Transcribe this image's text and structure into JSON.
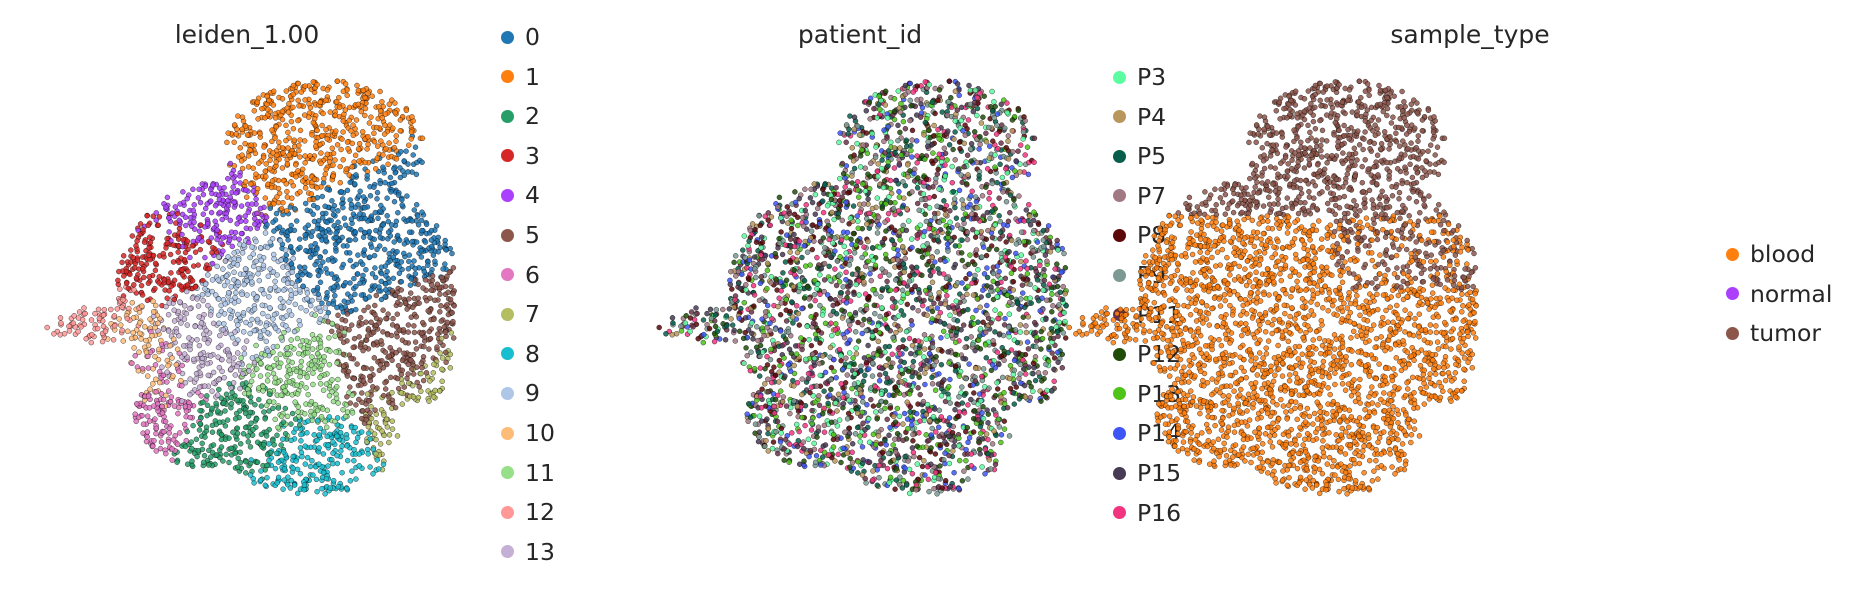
{
  "chart_data": [
    {
      "type": "scatter",
      "title": "leiden_1.00",
      "legend_position": "right",
      "grid": false,
      "axes_visible": false,
      "point_outline": "#000000",
      "categories": [
        {
          "name": "0",
          "color": "#1f77b4"
        },
        {
          "name": "1",
          "color": "#ff7f0e"
        },
        {
          "name": "2",
          "color": "#279e68"
        },
        {
          "name": "3",
          "color": "#d62728"
        },
        {
          "name": "4",
          "color": "#aa40fc"
        },
        {
          "name": "5",
          "color": "#8c564b"
        },
        {
          "name": "6",
          "color": "#e377c2"
        },
        {
          "name": "7",
          "color": "#b5bd61"
        },
        {
          "name": "8",
          "color": "#17becf"
        },
        {
          "name": "9",
          "color": "#aec7e8"
        },
        {
          "name": "10",
          "color": "#ffbb78"
        },
        {
          "name": "11",
          "color": "#98df8a"
        },
        {
          "name": "12",
          "color": "#ff9896"
        },
        {
          "name": "13",
          "color": "#c5b0d5"
        }
      ]
    },
    {
      "type": "scatter",
      "title": "patient_id",
      "legend_position": "right",
      "grid": false,
      "axes_visible": false,
      "point_outline": "#000000",
      "categories": [
        {
          "name": "P3",
          "color": "#5cfca1"
        },
        {
          "name": "P4",
          "color": "#b9965c"
        },
        {
          "name": "P5",
          "color": "#075e4a"
        },
        {
          "name": "P7",
          "color": "#a27883"
        },
        {
          "name": "P8",
          "color": "#5a0808"
        },
        {
          "name": "P9",
          "color": "#7a9a93"
        },
        {
          "name": "P11",
          "color": "#6b3448"
        },
        {
          "name": "P12",
          "color": "#1f4c08"
        },
        {
          "name": "P13",
          "color": "#4ec419"
        },
        {
          "name": "P14",
          "color": "#3c55f4"
        },
        {
          "name": "P15",
          "color": "#463a54"
        },
        {
          "name": "P16",
          "color": "#f2347f"
        }
      ]
    },
    {
      "type": "scatter",
      "title": "sample_type",
      "legend_position": "right",
      "grid": false,
      "axes_visible": false,
      "point_outline": "#000000",
      "categories": [
        {
          "name": "blood",
          "color": "#ff7f0e"
        },
        {
          "name": "normal",
          "color": "#aa40fc"
        },
        {
          "name": "tumor",
          "color": "#8c564b"
        }
      ]
    }
  ]
}
